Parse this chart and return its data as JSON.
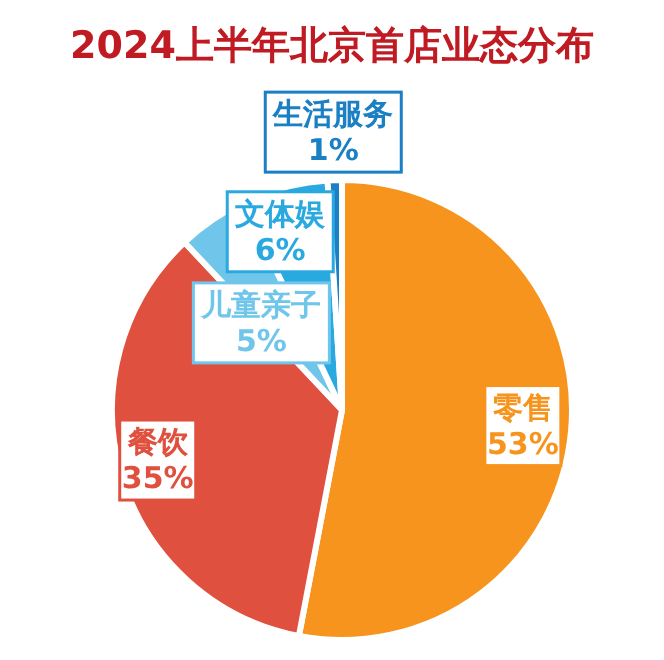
{
  "chart_data": {
    "type": "pie",
    "title": "2024上半年北京首店业态分布",
    "categories": [
      "零售",
      "餐饮",
      "儿童亲子",
      "文体娱",
      "生活服务"
    ],
    "values": [
      53,
      35,
      5,
      6,
      1
    ],
    "value_labels": [
      "53%",
      "35%",
      "5%",
      "6%",
      "1%"
    ],
    "colors": [
      "#f7941d",
      "#e0503e",
      "#6fc6ea",
      "#2aa9e0",
      "#1b7fc4"
    ],
    "legend": false
  }
}
